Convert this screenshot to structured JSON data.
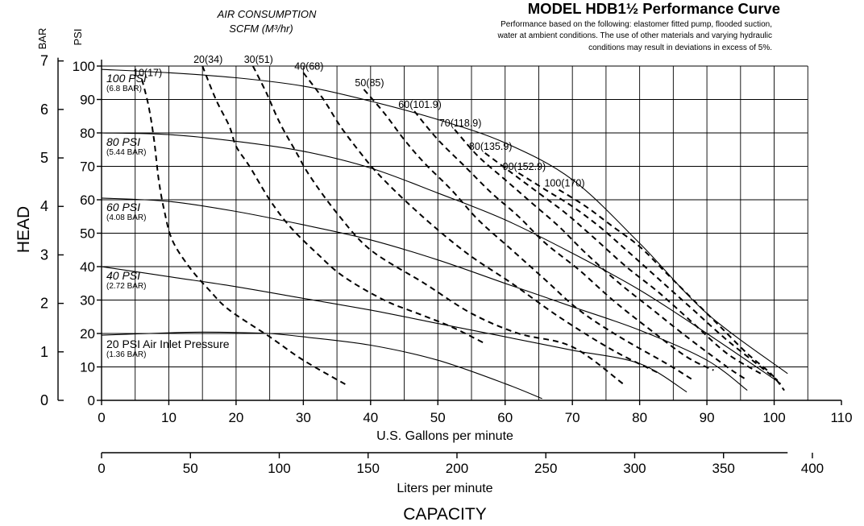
{
  "chart_data": {
    "type": "line",
    "title": "MODEL HDB1½ Performance Curve",
    "note": [
      "Performance based on the following: elastomer fitted pump, flooded suction,",
      "water at ambient conditions. The use of other materials and varying hydraulic",
      "conditions may result in deviations in excess of 5%."
    ],
    "air_header": [
      "AIR CONSUMPTION",
      "SCFM (M³/hr)"
    ],
    "ylabel": "HEAD",
    "ylabel_psi_unit": "PSI",
    "ylabel_bar_unit": "BAR",
    "xlabel": "U.S. Gallons per minute",
    "xlabel_lpm": "Liters per minute",
    "xlabel_main": "CAPACITY",
    "xlim": [
      0,
      110
    ],
    "ylim": [
      0,
      100
    ],
    "x_ticks": [
      0,
      10,
      20,
      30,
      40,
      50,
      60,
      70,
      80,
      90,
      100,
      110
    ],
    "psi_ticks": [
      0,
      10,
      20,
      30,
      40,
      50,
      60,
      70,
      80,
      90,
      100
    ],
    "bar_ticks": [
      0,
      1,
      2,
      3,
      4,
      5,
      6,
      7
    ],
    "lpm_ticks": [
      0,
      50,
      100,
      150,
      200,
      250,
      300,
      350,
      400
    ],
    "grid": true,
    "pressure_series": [
      {
        "name": "100 PSI",
        "sub": "(6.8 BAR)",
        "points": [
          [
            0,
            99
          ],
          [
            10,
            98
          ],
          [
            20,
            96.5
          ],
          [
            30,
            94
          ],
          [
            40,
            89.5
          ],
          [
            50,
            84
          ],
          [
            60,
            77
          ],
          [
            70,
            66
          ],
          [
            80,
            47
          ],
          [
            90,
            26
          ],
          [
            102,
            8
          ]
        ]
      },
      {
        "name": "80 PSI",
        "sub": "(5.44 BAR)",
        "points": [
          [
            0,
            80
          ],
          [
            10,
            79.5
          ],
          [
            20,
            77.5
          ],
          [
            30,
            74.5
          ],
          [
            40,
            69.5
          ],
          [
            50,
            62
          ],
          [
            60,
            54
          ],
          [
            70,
            44
          ],
          [
            80,
            33
          ],
          [
            90,
            20
          ],
          [
            101,
            5
          ]
        ]
      },
      {
        "name": "60 PSI",
        "sub": "(4.08 BAR)",
        "points": [
          [
            0,
            60.5
          ],
          [
            10,
            59.5
          ],
          [
            20,
            56.5
          ],
          [
            30,
            52.5
          ],
          [
            40,
            48
          ],
          [
            50,
            42
          ],
          [
            60,
            35
          ],
          [
            70,
            28
          ],
          [
            80,
            21
          ],
          [
            90,
            12
          ],
          [
            96,
            3
          ]
        ]
      },
      {
        "name": "40 PSI",
        "sub": "(2.72 BAR)",
        "points": [
          [
            0,
            40
          ],
          [
            10,
            37
          ],
          [
            20,
            34
          ],
          [
            30,
            30.5
          ],
          [
            40,
            27
          ],
          [
            50,
            23
          ],
          [
            60,
            19
          ],
          [
            70,
            15
          ],
          [
            80,
            11
          ],
          [
            87,
            2.5
          ]
        ]
      },
      {
        "name": "20 PSI Air Inlet Pressure",
        "sub": "(1.36 BAR)",
        "points": [
          [
            0,
            19.5
          ],
          [
            10,
            20.2
          ],
          [
            15,
            20.4
          ],
          [
            20,
            20.3
          ],
          [
            25,
            20
          ],
          [
            30,
            19
          ],
          [
            40,
            16.5
          ],
          [
            50,
            12
          ],
          [
            60,
            5
          ],
          [
            65.5,
            0.5
          ]
        ]
      }
    ],
    "air_series": [
      {
        "name": "10(17)",
        "points": [
          [
            6,
            96
          ],
          [
            7,
            88
          ],
          [
            7.8,
            78
          ],
          [
            8.5,
            66
          ],
          [
            9.3,
            57
          ],
          [
            10.5,
            48
          ],
          [
            13,
            40
          ],
          [
            16,
            33
          ],
          [
            19,
            27
          ],
          [
            25,
            19
          ],
          [
            30,
            12
          ],
          [
            36.5,
            4.5
          ]
        ]
      },
      {
        "name": "20(34)",
        "points": [
          [
            15,
            100
          ],
          [
            17,
            90
          ],
          [
            19,
            82
          ],
          [
            20,
            76
          ],
          [
            22,
            70
          ],
          [
            25,
            60
          ],
          [
            28,
            52
          ],
          [
            32,
            44
          ],
          [
            36,
            37
          ],
          [
            42,
            30
          ],
          [
            47,
            26
          ],
          [
            52,
            22
          ],
          [
            57,
            17
          ]
        ]
      },
      {
        "name": "30(51)",
        "points": [
          [
            22.5,
            100
          ],
          [
            24.5,
            92
          ],
          [
            26.5,
            83
          ],
          [
            29,
            74
          ],
          [
            31,
            67
          ],
          [
            35,
            56
          ],
          [
            40,
            45
          ],
          [
            48,
            35
          ],
          [
            55,
            26
          ],
          [
            62,
            20
          ],
          [
            70,
            16
          ],
          [
            77.5,
            5
          ]
        ]
      },
      {
        "name": "40(68)",
        "points": [
          [
            30,
            98
          ],
          [
            33,
            90
          ],
          [
            35.5,
            82
          ],
          [
            38.5,
            74
          ],
          [
            41,
            68
          ],
          [
            45,
            60
          ],
          [
            50,
            51
          ],
          [
            55,
            43
          ],
          [
            61,
            35
          ],
          [
            68,
            25
          ],
          [
            76,
            15
          ],
          [
            83,
            8
          ]
        ]
      },
      {
        "name": "50(85)",
        "points": [
          [
            39,
            93
          ],
          [
            42,
            86
          ],
          [
            45,
            78
          ],
          [
            48,
            71
          ],
          [
            52,
            63
          ],
          [
            56,
            54
          ],
          [
            61,
            45
          ],
          [
            66,
            36
          ],
          [
            71,
            27
          ],
          [
            77,
            19
          ],
          [
            84,
            11
          ],
          [
            88,
            6
          ]
        ]
      },
      {
        "name": "60(101.9)",
        "points": [
          [
            46.5,
            86.5
          ],
          [
            50,
            78
          ],
          [
            54,
            70
          ],
          [
            58,
            62
          ],
          [
            62,
            55
          ],
          [
            66,
            47
          ],
          [
            71,
            39
          ],
          [
            76,
            30
          ],
          [
            81,
            22
          ],
          [
            87,
            13
          ],
          [
            91,
            9
          ]
        ]
      },
      {
        "name": "70(118.9)",
        "points": [
          [
            52.5,
            81
          ],
          [
            56,
            73
          ],
          [
            60,
            66
          ],
          [
            64,
            59
          ],
          [
            68,
            52
          ],
          [
            72,
            44
          ],
          [
            77,
            35
          ],
          [
            82,
            27
          ],
          [
            87,
            19
          ],
          [
            93,
            10
          ],
          [
            96,
            6
          ]
        ]
      },
      {
        "name": "80(135.9)",
        "points": [
          [
            57,
            74
          ],
          [
            61,
            68
          ],
          [
            65,
            62
          ],
          [
            69,
            56
          ],
          [
            73,
            49
          ],
          [
            78,
            40
          ],
          [
            83,
            32
          ],
          [
            88,
            23
          ],
          [
            93,
            14
          ],
          [
            98,
            8
          ]
        ]
      },
      {
        "name": "90(152.9)",
        "points": [
          [
            62,
            68
          ],
          [
            66,
            63
          ],
          [
            70,
            58
          ],
          [
            74,
            52
          ],
          [
            78,
            45
          ],
          [
            83,
            36
          ],
          [
            88,
            27
          ],
          [
            93,
            18
          ],
          [
            98,
            10
          ],
          [
            100.5,
            6
          ]
        ]
      },
      {
        "name": "100(170)",
        "points": [
          [
            68,
            63
          ],
          [
            72,
            58
          ],
          [
            76,
            52
          ],
          [
            80,
            46
          ],
          [
            84,
            38
          ],
          [
            88,
            30
          ],
          [
            92,
            22
          ],
          [
            96,
            14
          ],
          [
            99.5,
            8
          ],
          [
            101.5,
            3
          ]
        ]
      }
    ]
  }
}
